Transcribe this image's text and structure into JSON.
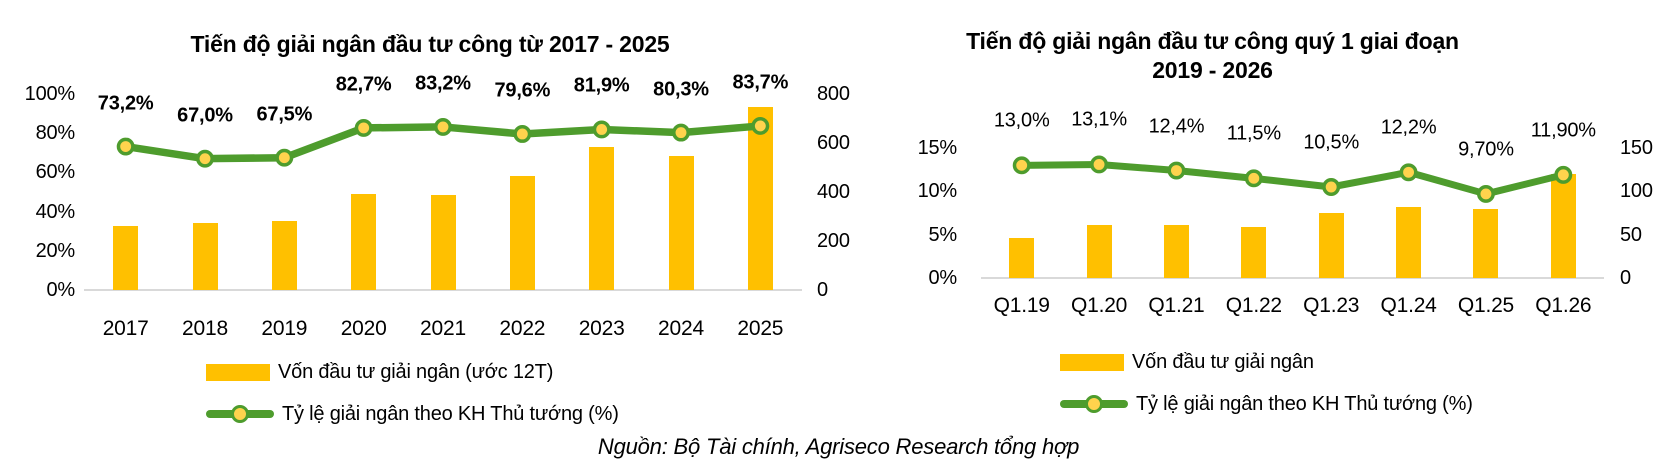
{
  "colors": {
    "bar": "#FFC000",
    "line": "#4E9C2D",
    "marker_fill": "#FFD34D",
    "axis_line": "#D9D9D9",
    "text": "#000000"
  },
  "source": "Nguồn: Bộ Tài chính, Agriseco Research tổng hợp",
  "chart_data": [
    {
      "type": "bar+line",
      "title": "Tiến độ giải ngân đầu tư công từ 2017 - 2025",
      "categories": [
        "2017",
        "2018",
        "2019",
        "2020",
        "2021",
        "2022",
        "2023",
        "2024",
        "2025"
      ],
      "series": [
        {
          "name": "Vốn đầu tư giải ngân (ước 12T)",
          "type": "bar",
          "axis": "right",
          "values": [
            260,
            275,
            280,
            390,
            388,
            465,
            585,
            546,
            745
          ]
        },
        {
          "name": "Tỷ lệ giải ngân theo KH Thủ tướng (%)",
          "type": "line",
          "axis": "left",
          "values": [
            73.2,
            67.0,
            67.5,
            82.7,
            83.2,
            79.6,
            81.9,
            80.3,
            83.7
          ],
          "labels": [
            "73,2%",
            "67,0%",
            "67,5%",
            "82,7%",
            "83,2%",
            "79,6%",
            "81,9%",
            "80,3%",
            "83,7%"
          ]
        }
      ],
      "left_axis": {
        "ticks": [
          "0%",
          "20%",
          "40%",
          "60%",
          "80%",
          "100%"
        ],
        "min": 0,
        "max": 100
      },
      "right_axis": {
        "ticks": [
          "0",
          "200",
          "400",
          "600",
          "800"
        ],
        "min": 0,
        "max": 800
      },
      "label_weight": "bold",
      "grid": false,
      "legend_position": "bottom"
    },
    {
      "type": "bar+line",
      "title": "Tiến độ giải ngân đầu tư công quý 1 giai đoạn 2019 - 2026",
      "categories": [
        "Q1.19",
        "Q1.20",
        "Q1.21",
        "Q1.22",
        "Q1.23",
        "Q1.24",
        "Q1.25",
        "Q1.26"
      ],
      "series": [
        {
          "name": "Vốn đầu tư giải ngân",
          "type": "bar",
          "axis": "right",
          "values": [
            46,
            61,
            61,
            59,
            75,
            82,
            80,
            120
          ]
        },
        {
          "name": "Tỷ lệ giải ngân theo KH Thủ tướng (%)",
          "type": "line",
          "axis": "left",
          "values": [
            13.0,
            13.1,
            12.4,
            11.5,
            10.5,
            12.2,
            9.7,
            11.9
          ],
          "labels": [
            "13,0%",
            "13,1%",
            "12,4%",
            "11,5%",
            "10,5%",
            "12,2%",
            "9,70%",
            "11,90%"
          ]
        }
      ],
      "left_axis": {
        "ticks": [
          "0%",
          "5%",
          "10%",
          "15%"
        ],
        "min": 0,
        "max": 15
      },
      "right_axis": {
        "ticks": [
          "0",
          "50",
          "100",
          "150"
        ],
        "min": 0,
        "max": 150
      },
      "label_weight": "normal",
      "grid": false,
      "legend_position": "bottom"
    }
  ]
}
